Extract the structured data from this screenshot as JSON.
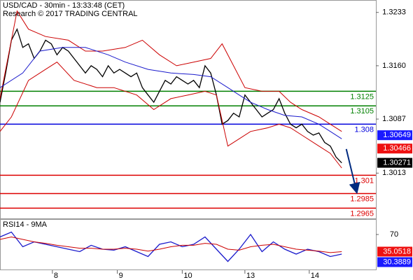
{
  "chart_data": [
    {
      "type": "line",
      "title": "USD/CAD - 30min - 13:33:48 (CET)",
      "subtitle": "Research © 2017 TRADING CENTRAL",
      "xlim": [
        0,
        66
      ],
      "ylim": [
        1.2951,
        1.325
      ],
      "yticks": [
        1.3233,
        {
          "value": 1.316,
          "label": "1.3160"
        },
        1.3087,
        1.3013
      ],
      "series": [
        {
          "color": "#000000",
          "x": [
            0,
            1,
            2,
            3,
            4,
            5,
            6,
            7,
            8,
            9,
            10,
            11,
            12,
            13,
            14,
            15,
            16,
            17,
            18,
            19,
            20,
            21,
            22,
            23,
            24,
            25,
            26,
            27,
            28,
            29,
            30,
            31,
            32,
            33,
            34,
            35,
            36,
            37,
            38,
            39,
            40,
            41,
            42,
            43,
            44,
            45,
            46,
            47,
            48,
            49,
            50,
            51,
            52,
            53,
            54,
            55,
            56,
            57,
            58,
            59,
            60
          ],
          "values": [
            1.311,
            1.315,
            1.3195,
            1.321,
            1.3185,
            1.319,
            1.317,
            1.318,
            1.3195,
            1.319,
            1.3175,
            1.3185,
            1.318,
            1.317,
            1.316,
            1.315,
            1.316,
            1.3155,
            1.3145,
            1.316,
            1.315,
            1.3155,
            1.315,
            1.3145,
            1.315,
            1.313,
            1.312,
            1.311,
            1.3125,
            1.314,
            1.3135,
            1.3145,
            1.314,
            1.3135,
            1.314,
            1.313,
            1.316,
            1.315,
            1.312,
            1.308,
            1.3085,
            1.3095,
            1.309,
            1.312,
            1.311,
            1.31,
            1.309,
            1.3095,
            1.31,
            1.3115,
            1.3095,
            1.308,
            1.3075,
            1.308,
            1.307,
            1.3065,
            1.3068,
            1.3055,
            1.305,
            1.3035,
            1.3027
          ]
        },
        {
          "color": "#cc0000",
          "x": [
            0,
            3,
            5,
            8,
            12,
            15,
            18,
            22,
            25,
            28,
            31,
            34,
            37,
            39,
            41,
            43,
            46,
            49,
            51,
            53,
            56,
            58,
            60
          ],
          "values": [
            1.3115,
            1.3235,
            1.321,
            1.32,
            1.3195,
            1.318,
            1.318,
            1.3185,
            1.3195,
            1.3175,
            1.316,
            1.3165,
            1.317,
            1.319,
            1.316,
            1.313,
            1.3125,
            1.3125,
            1.311,
            1.31,
            1.309,
            1.308,
            1.307
          ]
        },
        {
          "color": "#cc0000",
          "x": [
            0,
            2,
            5,
            8,
            10,
            13,
            17,
            20,
            24,
            27,
            30,
            33,
            36,
            38,
            40,
            42,
            44,
            47,
            49,
            51,
            53,
            56,
            58,
            60
          ],
          "values": [
            1.307,
            1.309,
            1.314,
            1.3155,
            1.3165,
            1.314,
            1.313,
            1.313,
            1.312,
            1.31,
            1.3115,
            1.312,
            1.3125,
            1.312,
            1.305,
            1.306,
            1.307,
            1.3075,
            1.308,
            1.3075,
            1.3065,
            1.305,
            1.304,
            1.302
          ]
        },
        {
          "color": "#1a1acc",
          "x": [
            0,
            4,
            7,
            11,
            15,
            19,
            22,
            26,
            30,
            34,
            37,
            40,
            42,
            44,
            47,
            50,
            53,
            56,
            58,
            60
          ],
          "values": [
            1.313,
            1.315,
            1.318,
            1.3185,
            1.3185,
            1.3175,
            1.3165,
            1.3155,
            1.315,
            1.3148,
            1.3145,
            1.313,
            1.312,
            1.311,
            1.31,
            1.3092,
            1.309,
            1.308,
            1.307,
            1.306
          ]
        }
      ],
      "levels": [
        {
          "value": 1.3125,
          "color": "#008000"
        },
        {
          "value": 1.3105,
          "color": "#008000"
        },
        {
          "value": 1.308,
          "color": "#0000dd"
        },
        {
          "value": 1.301,
          "color": "#dd0000"
        },
        {
          "value": 1.2985,
          "color": "#dd0000"
        },
        {
          "value": 1.2965,
          "color": "#dd0000"
        }
      ],
      "price_tags": [
        {
          "value": 1.30649,
          "color": "#1a1aff"
        },
        {
          "value": 1.30466,
          "color": "#ee1111"
        },
        {
          "value": 1.30271,
          "color": "#000000"
        }
      ],
      "forecast": {
        "color": "#002b80",
        "x": [
          60.8,
          62.6
        ],
        "values": [
          1.3046,
          1.2988
        ]
      }
    },
    {
      "type": "line",
      "title": "RSI14 - 9MA",
      "xlim": [
        0,
        66
      ],
      "xticks": [
        {
          "value": 9.2,
          "label": "8"
        },
        {
          "value": 20.6,
          "label": "9"
        },
        {
          "value": 32,
          "label": "10"
        },
        {
          "value": 43,
          "label": "13"
        },
        {
          "value": 54.3,
          "label": "14"
        }
      ],
      "ylim": [
        0,
        100
      ],
      "yticks": [
        70
      ],
      "series": [
        {
          "color": "#1a1acc",
          "x": [
            0,
            2,
            4,
            6,
            8,
            10,
            12,
            14,
            16,
            18,
            20,
            22,
            24,
            26,
            28,
            30,
            32,
            34,
            36,
            38,
            40,
            42,
            44,
            46,
            48,
            50,
            52,
            54,
            56,
            58,
            60
          ],
          "values": [
            65,
            75,
            45,
            55,
            50,
            45,
            40,
            35,
            48,
            40,
            38,
            45,
            35,
            25,
            50,
            55,
            45,
            50,
            65,
            40,
            15,
            40,
            70,
            35,
            55,
            40,
            30,
            40,
            35,
            25,
            30
          ]
        },
        {
          "color": "#cc0000",
          "x": [
            0,
            2,
            4,
            6,
            8,
            10,
            12,
            14,
            16,
            18,
            20,
            22,
            24,
            26,
            28,
            30,
            32,
            34,
            36,
            38,
            40,
            42,
            44,
            46,
            48,
            50,
            52,
            54,
            56,
            58,
            60
          ],
          "values": [
            60,
            65,
            60,
            55,
            52,
            48,
            45,
            42,
            42,
            40,
            40,
            42,
            40,
            36,
            40,
            45,
            48,
            48,
            52,
            50,
            40,
            38,
            45,
            48,
            50,
            45,
            40,
            38,
            36,
            33,
            35
          ]
        }
      ],
      "price_tags": [
        {
          "value": 35.0518,
          "color": "#ee1111"
        },
        {
          "value": 30.3889,
          "color": "#1a1aff"
        }
      ]
    }
  ]
}
